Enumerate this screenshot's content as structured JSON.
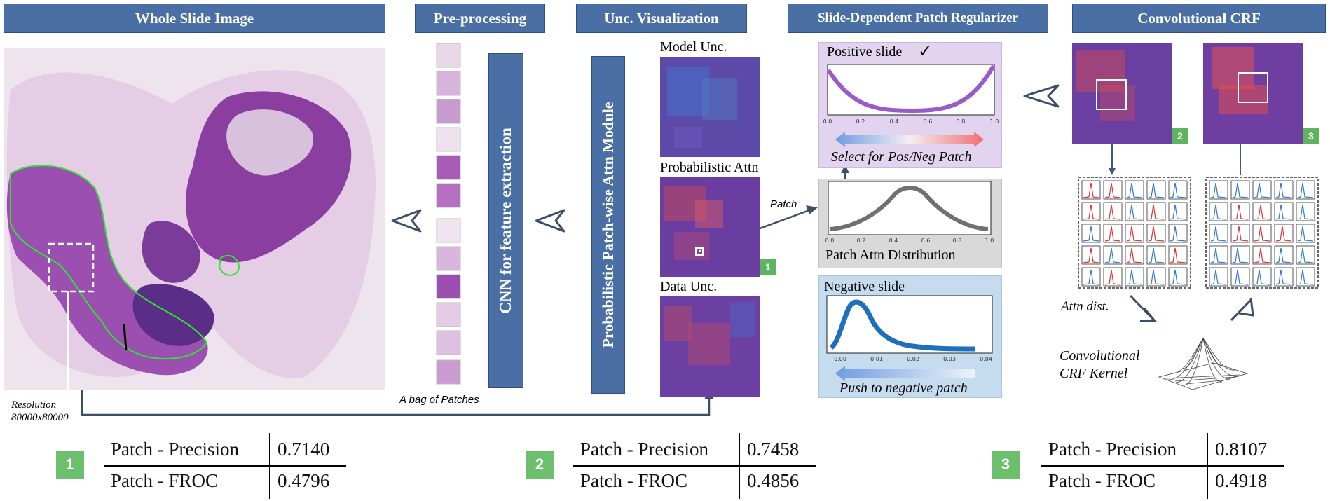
{
  "headers": {
    "wsi": "Whole Slide Image",
    "preprocessing": "Pre-processing",
    "unc_vis": "Unc. Visualization",
    "regularizer": "Slide-Dependent Patch Regularizer",
    "crf": "Convolutional CRF"
  },
  "modules": {
    "cnn": "CNN for feature extraction",
    "attn": "Probabilistic Patch-wise Attn Module"
  },
  "labels": {
    "resolution_line1": "Resolution",
    "resolution_line2": "80000x80000",
    "bag": "A bag of Patches",
    "model_unc": "Model Unc.",
    "prob_attn": "Probabilistic Attn",
    "data_unc": "Data Unc.",
    "patch": "Patch",
    "positive_slide": "Positive slide",
    "checkmark": "✓",
    "select_pos_neg": "Select for Pos/Neg Patch",
    "patch_attn_dist": "Patch Attn Distribution",
    "negative_slide": "Negative slide",
    "push_negative": "Push to negative patch",
    "attn_dist": "Attn dist.",
    "crf_kernel_line1": "Convolutional",
    "crf_kernel_line2": "CRF Kernel"
  },
  "badges": [
    "1",
    "2",
    "3"
  ],
  "tables": [
    {
      "badge": "1",
      "rows": [
        {
          "metric": "Patch - Precision",
          "value": "0.7140"
        },
        {
          "metric": "Patch - FROC",
          "value": "0.4796"
        }
      ]
    },
    {
      "badge": "2",
      "rows": [
        {
          "metric": "Patch - Precision",
          "value": "0.7458"
        },
        {
          "metric": "Patch - FROC",
          "value": "0.4856"
        }
      ]
    },
    {
      "badge": "3",
      "rows": [
        {
          "metric": "Patch - Precision",
          "value": "0.8107"
        },
        {
          "metric": "Patch - FROC",
          "value": "0.4918"
        }
      ]
    }
  ],
  "plots": {
    "positive": {
      "xticks": [
        "0.0",
        "0.2",
        "0.4",
        "0.6",
        "0.8",
        "1.0"
      ]
    },
    "patch": {
      "xticks": [
        "0.0",
        "0.2",
        "0.4",
        "0.6",
        "0.8",
        "1.0"
      ]
    },
    "negative": {
      "xticks": [
        "0.00",
        "0.01",
        "0.02",
        "0.03",
        "0.04"
      ]
    }
  },
  "colors": {
    "header_fill": "#4a6fa5",
    "badge_green": "#6cbf6c",
    "positive_panel": "#e2d4ef",
    "patch_panel": "#d9d9d9",
    "negative_panel": "#c5dcef",
    "arrow": "#3d4f66"
  }
}
